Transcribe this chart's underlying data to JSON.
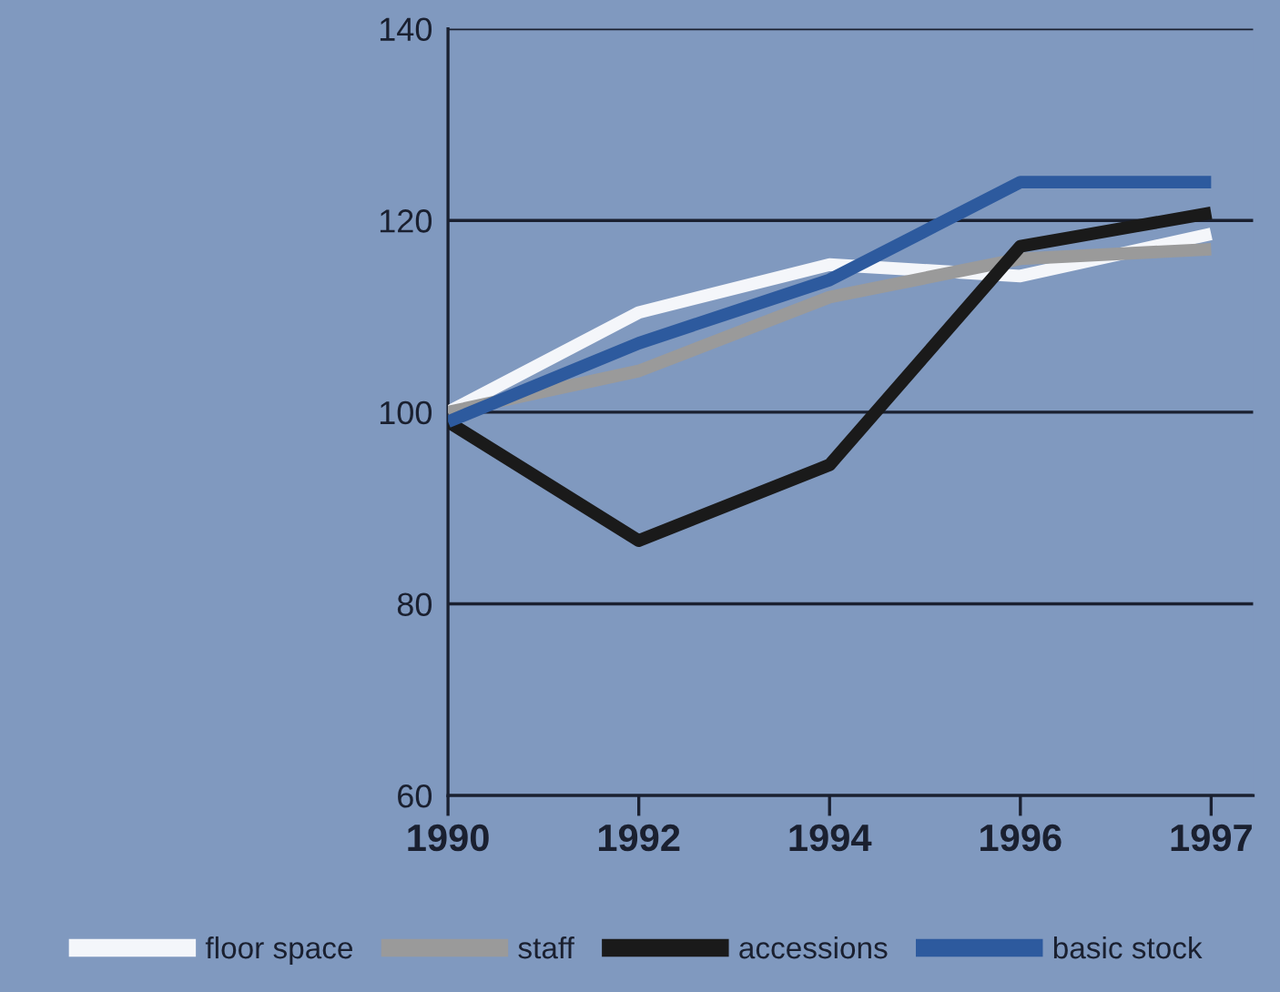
{
  "chart_data": {
    "type": "line",
    "categories": [
      "1990",
      "1992",
      "1994",
      "1996",
      "1997"
    ],
    "series": [
      {
        "name": "floor space",
        "color": "#f4f6fa",
        "values": [
          100,
          110.4,
          115.4,
          114.2,
          118.6
        ]
      },
      {
        "name": "staff",
        "color": "#9a9a9a",
        "values": [
          100,
          104.3,
          112,
          116,
          117
        ]
      },
      {
        "name": "accessions",
        "color": "#1a1a1a",
        "values": [
          99,
          86.6,
          94.5,
          117.3,
          120.8
        ]
      },
      {
        "name": "basic stock",
        "color": "#2d5a9e",
        "values": [
          99,
          107.2,
          113.8,
          124,
          124
        ]
      }
    ],
    "ylim": [
      60,
      140
    ],
    "yticks": [
      60,
      80,
      100,
      120,
      140
    ],
    "grid": "y",
    "legend": "bottom",
    "marker": "none",
    "line_style": "solid"
  }
}
